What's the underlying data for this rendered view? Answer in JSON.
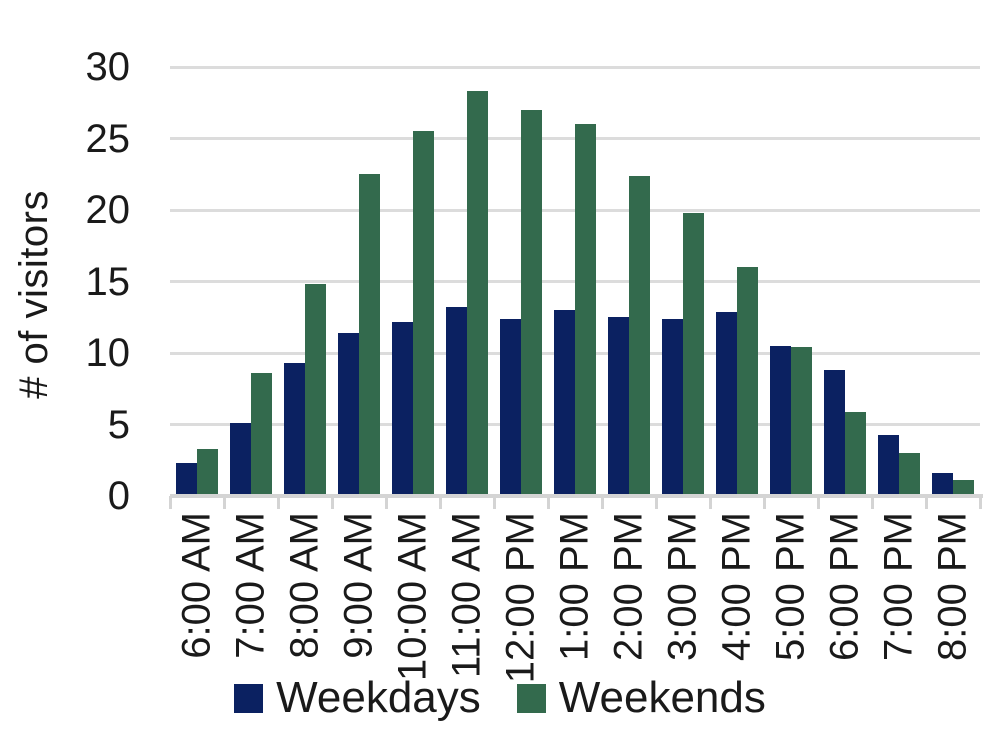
{
  "chart_data": {
    "type": "bar",
    "title": "",
    "xlabel": "",
    "ylabel": "# of visitors",
    "ylim": [
      0,
      30
    ],
    "yticks": [
      0,
      5,
      10,
      15,
      20,
      25,
      30
    ],
    "grid": "horizontal",
    "legend_position": "bottom",
    "categories": [
      "6:00 AM",
      "7:00 AM",
      "8:00 AM",
      "9:00 AM",
      "10:00 AM",
      "11:00 AM",
      "12:00 PM",
      "1:00 PM",
      "2:00 PM",
      "3:00 PM",
      "4:00 PM",
      "5:00 PM",
      "6:00 PM",
      "7:00 PM",
      "8:00 PM"
    ],
    "series": [
      {
        "name": "Weekdays",
        "color": "#0b2161",
        "values": [
          2.3,
          5.1,
          9.3,
          11.4,
          12.2,
          13.2,
          12.4,
          13.0,
          12.5,
          12.4,
          12.9,
          10.5,
          8.8,
          4.3,
          1.6
        ]
      },
      {
        "name": "Weekends",
        "color": "#336a4d",
        "values": [
          3.3,
          8.6,
          14.8,
          22.5,
          25.5,
          28.3,
          27.0,
          26.0,
          22.4,
          19.8,
          16.0,
          10.4,
          5.9,
          3.0,
          1.1
        ]
      }
    ],
    "colors": {
      "gridline": "#dcdcdc",
      "axis": "#d4d4d4",
      "text": "#1a1a1a"
    }
  }
}
